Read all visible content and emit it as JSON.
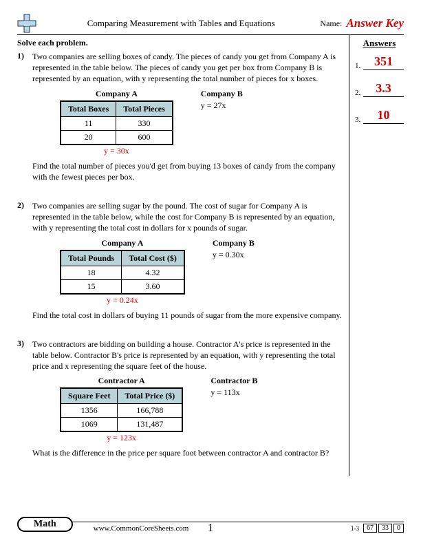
{
  "header": {
    "title": "Comparing Measurement with Tables and Equations",
    "name_label": "Name:",
    "answer_key": "Answer Key"
  },
  "instruction": "Solve each problem.",
  "answers_header": "Answers",
  "answers": [
    {
      "num": "1.",
      "value": "351"
    },
    {
      "num": "2.",
      "value": "3.3"
    },
    {
      "num": "3.",
      "value": "10"
    }
  ],
  "problems": [
    {
      "num": "1)",
      "text": "Two companies are selling boxes of candy. The pieces of candy you get from Company A is represented in the table below. The pieces of candy you get per box from Company B is represented by an equation, with y representing the total number of pieces for x boxes.",
      "companyA": {
        "label": "Company A",
        "col1": "Total Boxes",
        "col2": "Total Pieces",
        "rows": [
          [
            "11",
            "330"
          ],
          [
            "20",
            "600"
          ]
        ],
        "eq": "y = 30x"
      },
      "companyB": {
        "label": "Company B",
        "eq": "y = 27x"
      },
      "followup": "Find the total number of pieces you'd get from buying 13 boxes of candy from the company with the fewest pieces per box."
    },
    {
      "num": "2)",
      "text": "Two companies are selling sugar by the pound. The cost of sugar for Company A is represented in the table below, while the cost for Company B is represented by an equation, with y representing the total cost in dollars for x pounds of sugar.",
      "companyA": {
        "label": "Company A",
        "col1": "Total Pounds",
        "col2": "Total Cost ($)",
        "rows": [
          [
            "18",
            "4.32"
          ],
          [
            "15",
            "3.60"
          ]
        ],
        "eq": "y = 0.24x"
      },
      "companyB": {
        "label": "Company B",
        "eq": "y = 0.30x"
      },
      "followup": "Find the total cost in dollars of buying 11 pounds of sugar from the more expensive company."
    },
    {
      "num": "3)",
      "text": "Two contractors are bidding on building a house. Contractor A's price is represented in the table below. Contractor B's price is represented by an equation, with y representing the total price and x representing the square feet of the house.",
      "companyA": {
        "label": "Contractor A",
        "col1": "Square Feet",
        "col2": "Total Price ($)",
        "rows": [
          [
            "1356",
            "166,788"
          ],
          [
            "1069",
            "131,487"
          ]
        ],
        "eq": "y = 123x"
      },
      "companyB": {
        "label": "Contractor B",
        "eq": "y = 113x"
      },
      "followup": "What is the difference in the price per square foot between contractor A and contractor B?"
    }
  ],
  "footer": {
    "subject": "Math",
    "url": "www.CommonCoreSheets.com",
    "page": "1",
    "range": "1-3",
    "scores": [
      "67",
      "33",
      "0"
    ]
  },
  "style": {
    "answer_color": "#d40000",
    "table_header_bg": "#b8d4d9"
  }
}
